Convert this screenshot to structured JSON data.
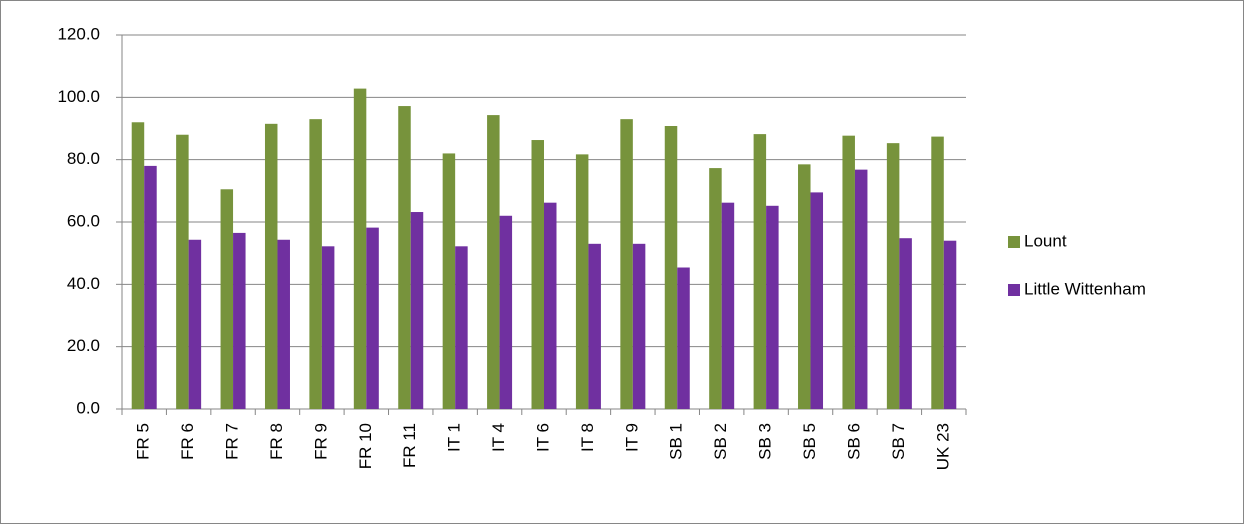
{
  "chart_data": {
    "type": "bar",
    "categories": [
      "FR 5",
      "FR 6",
      "FR 7",
      "FR 8",
      "FR 9",
      "FR 10",
      "FR 11",
      "IT 1",
      "IT 4",
      "IT 6",
      "IT 8",
      "IT 9",
      "SB 1",
      "SB 2",
      "SB 3",
      "SB 5",
      "SB 6",
      "SB 7",
      "UK 23"
    ],
    "series": [
      {
        "name": "Lount",
        "color": "#77933c",
        "values": [
          92,
          88,
          70.5,
          91.5,
          93,
          102.8,
          97.2,
          82,
          94.3,
          86.3,
          81.7,
          93,
          90.8,
          77.3,
          88.2,
          78.5,
          87.7,
          85.3,
          87.4
        ]
      },
      {
        "name": "Little Wittenham",
        "color": "#7030a0",
        "values": [
          78,
          54.3,
          56.5,
          54.3,
          52.2,
          58.2,
          63.2,
          52.2,
          62,
          66.2,
          53,
          53,
          45.4,
          66.2,
          65.2,
          69.5,
          76.8,
          54.8,
          54
        ]
      }
    ],
    "ylim": [
      0,
      120
    ],
    "yticks": [
      {
        "value": 0,
        "label": "0.0"
      },
      {
        "value": 20,
        "label": "20.0"
      },
      {
        "value": 40,
        "label": "40.0"
      },
      {
        "value": 60,
        "label": "60.0"
      },
      {
        "value": 80,
        "label": "80.0"
      },
      {
        "value": 100,
        "label": "100.0"
      },
      {
        "value": 120,
        "label": "120.0"
      }
    ],
    "grid": true,
    "legend": "right"
  }
}
